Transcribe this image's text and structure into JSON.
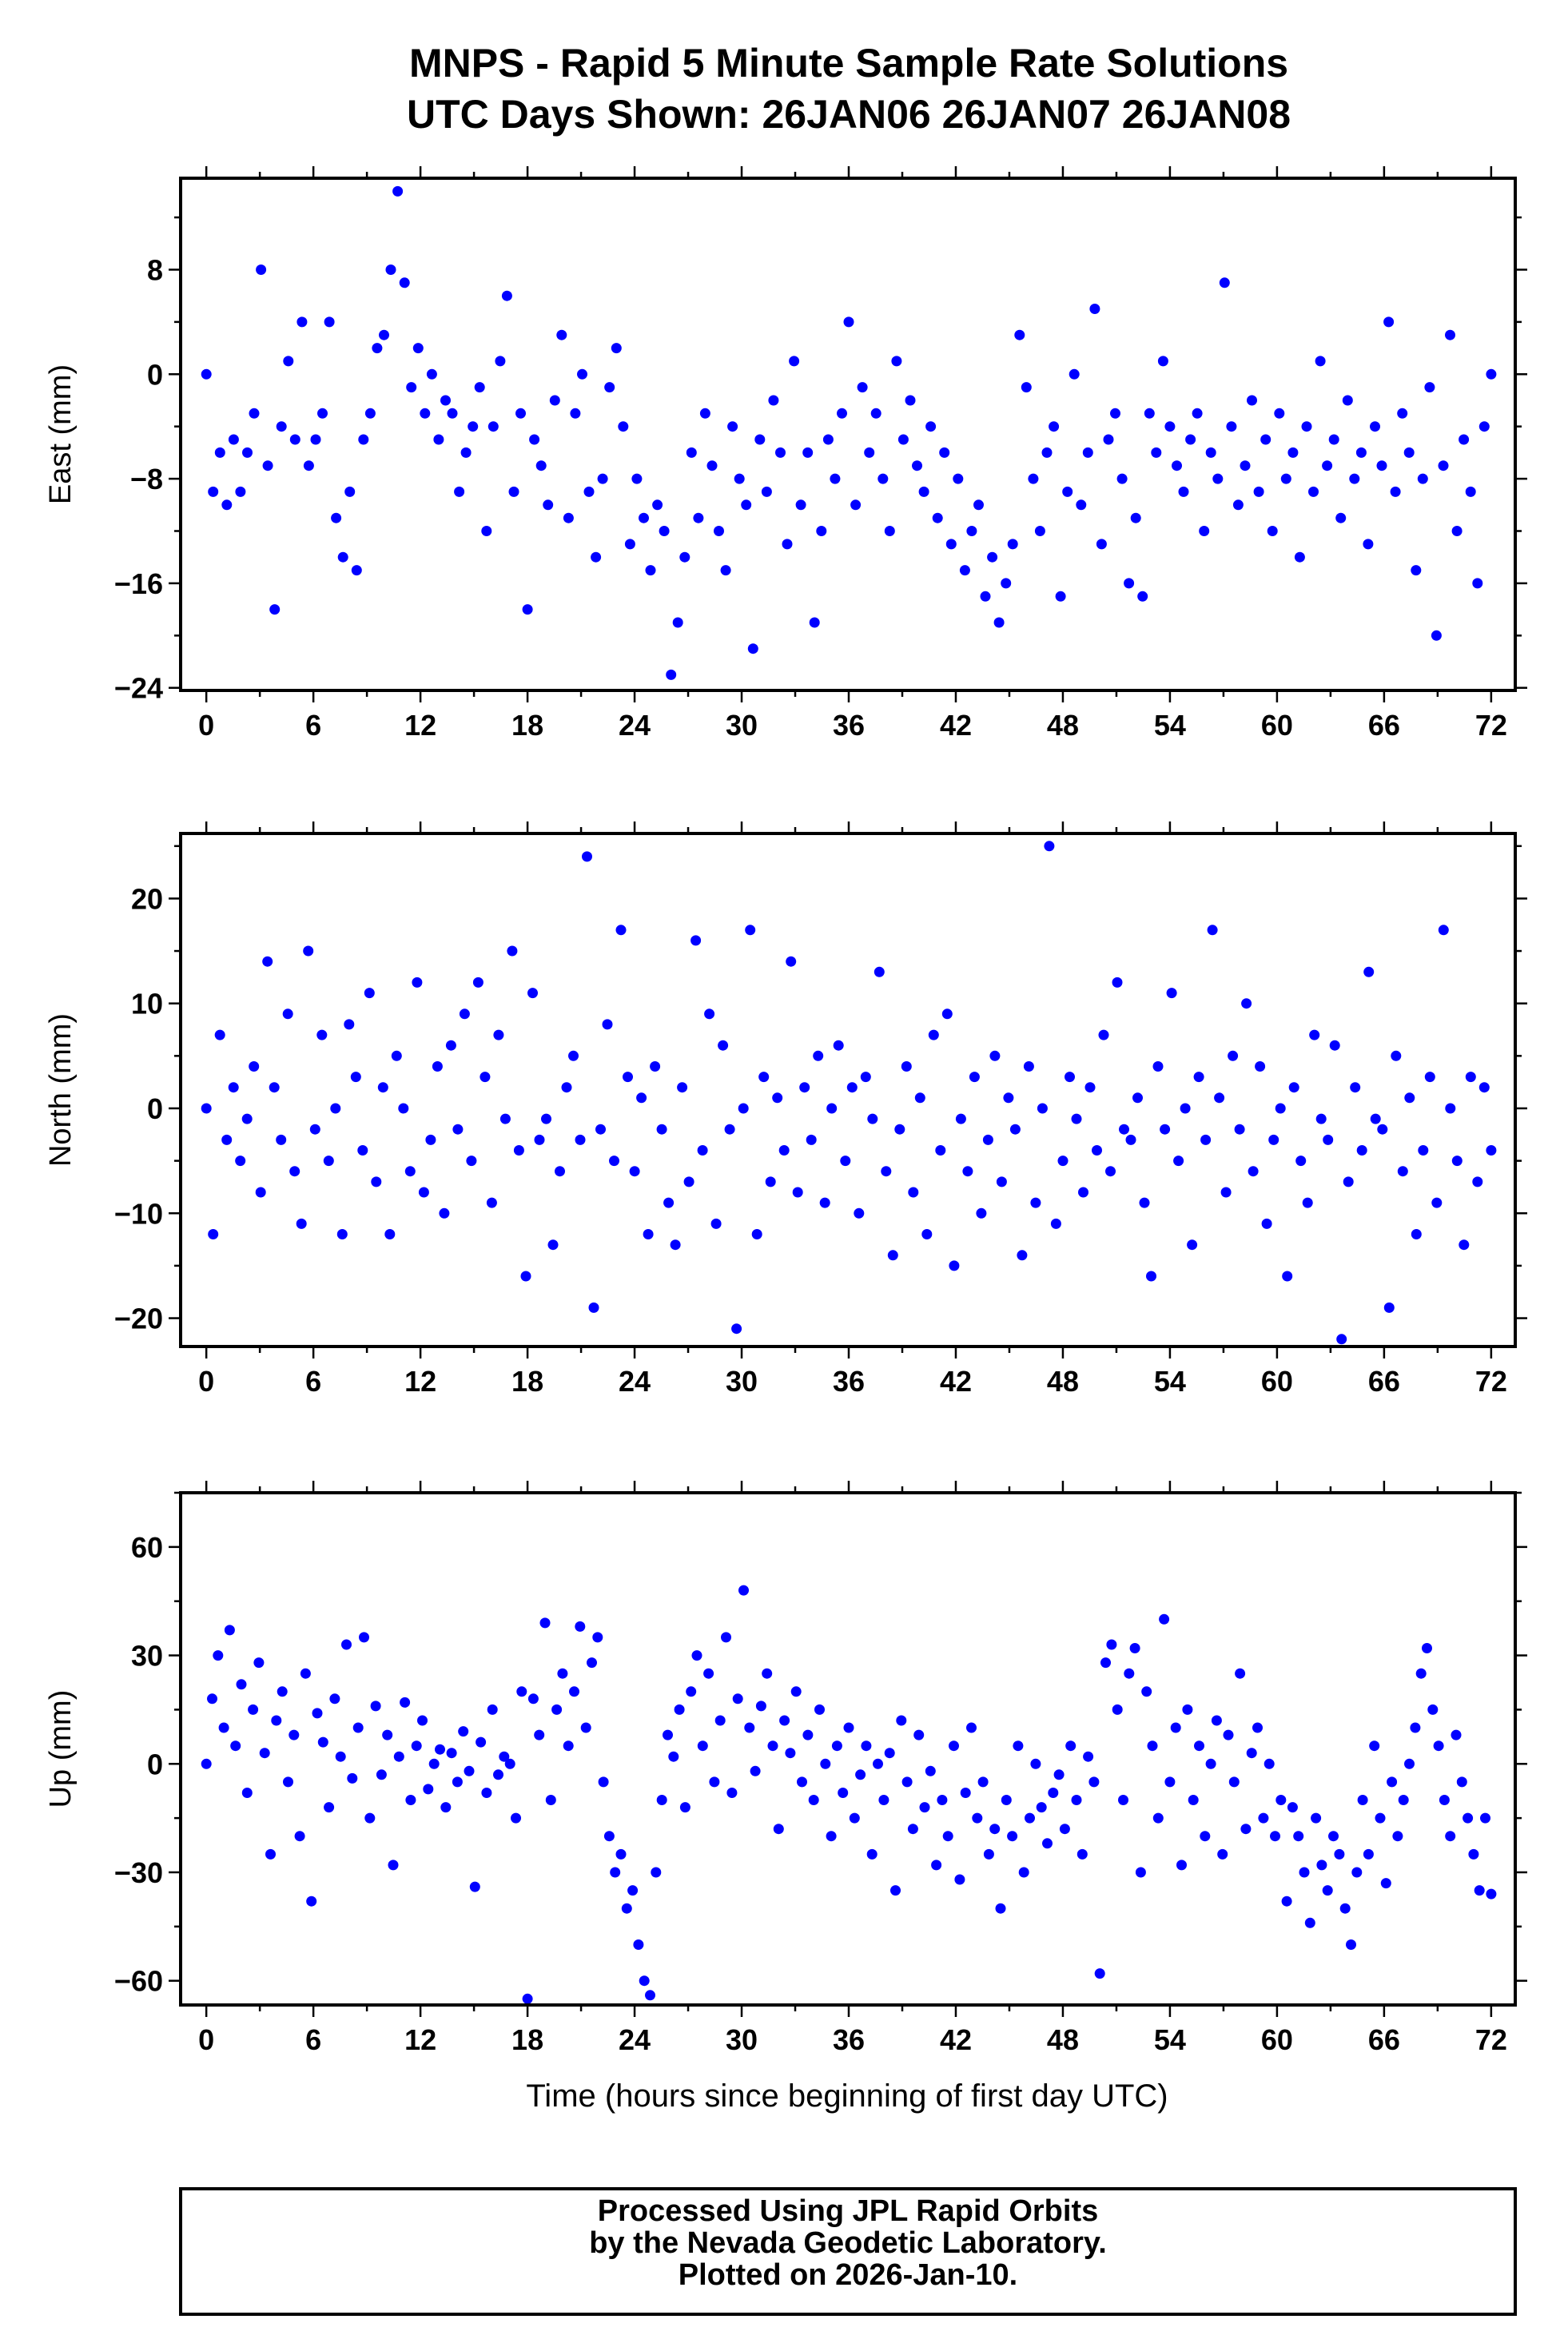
{
  "chart_data": [
    {
      "type": "scatter",
      "title": "MNPS - Rapid 5 Minute Sample Rate Solutions",
      "subtitle": "UTC Days Shown:  26JAN06 26JAN07 26JAN08",
      "ylabel": "East (mm)",
      "xlabel": "",
      "xlim": [
        -1.44,
        73.35
      ],
      "ylim": [
        -24.2,
        15
      ],
      "xticks": [
        0,
        6,
        12,
        18,
        24,
        30,
        36,
        42,
        48,
        54,
        60,
        66,
        72
      ],
      "yticks": [
        8,
        0,
        -8,
        -16,
        -24
      ],
      "color": "#0000ff",
      "x_range": [
        0,
        72
      ],
      "y": [
        0,
        -9,
        -6,
        -10,
        -5,
        -9,
        -6,
        -3,
        8,
        -7,
        -18,
        -4,
        1,
        -5,
        4,
        -7,
        -5,
        -3,
        4,
        -11,
        -14,
        -9,
        -15,
        -5,
        -3,
        2,
        3,
        8,
        14,
        7,
        -1,
        2,
        -3,
        0,
        -5,
        -2,
        -3,
        -9,
        -6,
        -4,
        -1,
        -12,
        -4,
        1,
        6,
        -9,
        -3,
        -18,
        -5,
        -7,
        -10,
        -2,
        3,
        -11,
        -3,
        0,
        -9,
        -14,
        -8,
        -1,
        2,
        -4,
        -13,
        -8,
        -11,
        -15,
        -10,
        -12,
        -23,
        -19,
        -14,
        -6,
        -11,
        -3,
        -7,
        -12,
        -15,
        -4,
        -8,
        -10,
        -21,
        -5,
        -9,
        -2,
        -6,
        -13,
        1,
        -10,
        -6,
        -19,
        -12,
        -5,
        -8,
        -3,
        4,
        -10,
        -1,
        -6,
        -3,
        -8,
        -12,
        1,
        -5,
        -2,
        -7,
        -9,
        -4,
        -11,
        -6,
        -13,
        -8,
        -15,
        -12,
        -10,
        -17,
        -14,
        -19,
        -16,
        -13,
        3,
        -1,
        -8,
        -12,
        -6,
        -4,
        -17,
        -9,
        0,
        -10,
        -6,
        5,
        -13,
        -5,
        -3,
        -8,
        -16,
        -11,
        -17,
        -3,
        -6,
        1,
        -4,
        -7,
        -9,
        -5,
        -3,
        -12,
        -6,
        -8,
        7,
        -4,
        -10,
        -7,
        -2,
        -9,
        -5,
        -12,
        -3,
        -8,
        -6,
        -14,
        -4,
        -9,
        1,
        -7,
        -5,
        -11,
        -2,
        -8,
        -6,
        -13,
        -4,
        -7,
        4,
        -9,
        -3,
        -6,
        -15,
        -8,
        -1,
        -20,
        -7,
        3,
        -12,
        -5,
        -9,
        -16,
        -4,
        0
      ]
    },
    {
      "type": "scatter",
      "ylabel": "North (mm)",
      "xlim": [
        -1.44,
        73.35
      ],
      "ylim": [
        -22.7,
        26.2
      ],
      "xticks": [
        0,
        6,
        12,
        18,
        24,
        30,
        36,
        42,
        48,
        54,
        60,
        66,
        72
      ],
      "yticks": [
        20,
        10,
        0,
        -10,
        -20
      ],
      "color": "#0000ff",
      "x_range": [
        0,
        72
      ],
      "y": [
        0,
        -12,
        7,
        -3,
        2,
        -5,
        -1,
        4,
        -8,
        14,
        2,
        -3,
        9,
        -6,
        -11,
        15,
        -2,
        7,
        -5,
        0,
        -12,
        8,
        3,
        -4,
        11,
        -7,
        2,
        -12,
        5,
        0,
        -6,
        12,
        -8,
        -3,
        4,
        -10,
        6,
        -2,
        9,
        -5,
        12,
        3,
        -9,
        7,
        -1,
        15,
        -4,
        -16,
        11,
        -3,
        -1,
        -13,
        -6,
        2,
        5,
        -3,
        24,
        -19,
        -2,
        8,
        -5,
        17,
        3,
        -6,
        1,
        -12,
        4,
        -2,
        -9,
        -13,
        2,
        -7,
        16,
        -4,
        9,
        -11,
        6,
        -2,
        -21,
        0,
        17,
        -12,
        3,
        -7,
        1,
        -4,
        14,
        -8,
        2,
        -3,
        5,
        -9,
        0,
        6,
        -5,
        2,
        -10,
        3,
        -1,
        13,
        -6,
        -14,
        -2,
        4,
        -8,
        1,
        -12,
        7,
        -4,
        9,
        -15,
        -1,
        -6,
        3,
        -10,
        -3,
        5,
        -7,
        1,
        -2,
        -14,
        4,
        -9,
        0,
        25,
        -11,
        -5,
        3,
        -1,
        -8,
        2,
        -4,
        7,
        -6,
        12,
        -2,
        -3,
        1,
        -9,
        -16,
        4,
        -2,
        11,
        -5,
        0,
        -13,
        3,
        -3,
        17,
        1,
        -8,
        5,
        -2,
        10,
        -6,
        4,
        -11,
        -3,
        0,
        -16,
        2,
        -5,
        -9,
        7,
        -1,
        -3,
        6,
        -22,
        -7,
        2,
        -4,
        13,
        -1,
        -2,
        -19,
        5,
        -6,
        1,
        -12,
        -4,
        3,
        -9,
        17,
        0,
        -5,
        -13,
        3,
        -7,
        2,
        -4
      ]
    },
    {
      "type": "scatter",
      "ylabel": "Up (mm)",
      "xlabel": "Time (hours since beginning of first day UTC)",
      "xlim": [
        -1.44,
        73.35
      ],
      "ylim": [
        -66.7,
        75
      ],
      "xticks": [
        0,
        6,
        12,
        18,
        24,
        30,
        36,
        42,
        48,
        54,
        60,
        66,
        72
      ],
      "yticks": [
        60,
        30,
        0,
        -30,
        -60
      ],
      "color": "#0000ff",
      "x_range": [
        0,
        72
      ],
      "y": [
        0,
        18,
        30,
        10,
        37,
        5,
        22,
        -8,
        15,
        28,
        3,
        -25,
        12,
        20,
        -5,
        8,
        -20,
        25,
        -38,
        14,
        6,
        -12,
        18,
        2,
        33,
        -4,
        10,
        35,
        -15,
        16,
        -3,
        8,
        -28,
        2,
        17,
        -10,
        5,
        12,
        -7,
        0,
        4,
        -12,
        3,
        -5,
        9,
        -2,
        -34,
        6,
        -8,
        15,
        -3,
        2,
        0,
        -15,
        20,
        -65,
        18,
        8,
        39,
        -10,
        15,
        25,
        5,
        20,
        38,
        10,
        28,
        35,
        -5,
        -20,
        -30,
        -25,
        -40,
        -35,
        -50,
        -60,
        -64,
        -30,
        -10,
        8,
        2,
        15,
        -12,
        20,
        30,
        5,
        25,
        -5,
        12,
        35,
        -8,
        18,
        48,
        10,
        -2,
        16,
        25,
        5,
        -18,
        12,
        3,
        20,
        -5,
        8,
        -10,
        15,
        0,
        -20,
        5,
        -8,
        10,
        -15,
        -3,
        5,
        -25,
        0,
        -10,
        3,
        -35,
        12,
        -5,
        -18,
        8,
        -12,
        -2,
        -28,
        -10,
        -20,
        5,
        -32,
        -8,
        10,
        -15,
        -5,
        -25,
        -18,
        -40,
        -10,
        -20,
        5,
        -30,
        -15,
        0,
        -12,
        -22,
        -8,
        -3,
        -18,
        5,
        -10,
        -25,
        2,
        -5,
        -58,
        28,
        33,
        15,
        -10,
        25,
        32,
        -30,
        20,
        5,
        -15,
        40,
        -5,
        10,
        -28,
        15,
        -10,
        5,
        -20,
        0,
        12,
        -25,
        8,
        -5,
        25,
        -18,
        3,
        10,
        -15,
        0,
        -20,
        -10,
        -38,
        -12,
        -20,
        -30,
        -44,
        -15,
        -28,
        -35,
        -20,
        -25,
        -40,
        -50,
        -30,
        -10,
        -25,
        5,
        -15,
        -33,
        -5,
        -20,
        -10,
        0,
        10,
        25,
        32,
        15,
        5,
        -10,
        -20,
        8,
        -5,
        -15,
        -25,
        -35,
        -15,
        -36
      ]
    }
  ],
  "footer": {
    "line1": "Processed Using JPL Rapid Orbits",
    "line2": "by the Nevada Geodetic Laboratory.",
    "line3": "Plotted on 2026-Jan-10."
  }
}
